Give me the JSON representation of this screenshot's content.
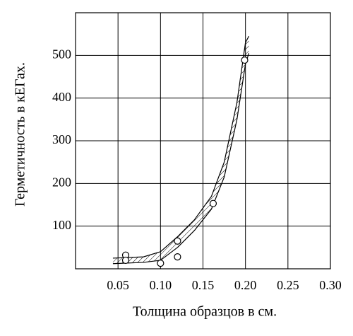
{
  "chart_data": {
    "type": "scatter",
    "xlabel": "Толщина образцов в см.",
    "ylabel": "Герметичность в кЕГах.",
    "xlim": [
      0,
      0.3
    ],
    "xticks": [
      0.05,
      {
        "value": 0.1,
        "label": "0.10"
      },
      0.15,
      {
        "value": 0.2,
        "label": "0.20"
      },
      0.25,
      {
        "value": 0.3,
        "label": "0.30"
      }
    ],
    "ylim": [
      0,
      600
    ],
    "yticks": [
      100,
      200,
      300,
      400,
      500
    ],
    "grid": true,
    "color": "#000000",
    "x": [
      0.059,
      0.059,
      0.1,
      0.12,
      0.12,
      0.162,
      0.199
    ],
    "y": [
      32,
      20,
      13,
      65,
      28,
      153,
      489
    ],
    "band": {
      "x": [
        0.044,
        0.08,
        0.1,
        0.12,
        0.14,
        0.16,
        0.175,
        0.19,
        0.2,
        0.204
      ],
      "upper": [
        25,
        28,
        40,
        75,
        115,
        170,
        250,
        390,
        530,
        545
      ],
      "lower": [
        12,
        15,
        20,
        50,
        90,
        140,
        215,
        350,
        480,
        505
      ]
    }
  }
}
